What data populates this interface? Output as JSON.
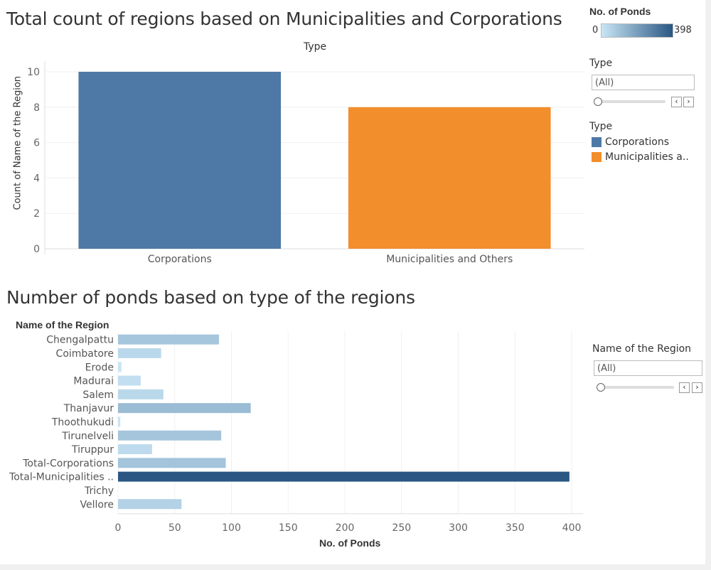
{
  "top_chart_title": "Total count of regions based on Municipalities and Corporations",
  "bottom_chart_title": "Number of ponds based on type of the regions",
  "colors": {
    "corporations": "#4e79a7",
    "municipalities": "#f28e2b",
    "ramp_light": "#c9e6f6",
    "ramp_dark": "#2a5783"
  },
  "right_panel": {
    "ponds_legend": {
      "title": "No. of Ponds",
      "min": "0",
      "max": "398"
    },
    "type_filter": {
      "title": "Type",
      "value": "(All)"
    },
    "type_legend": {
      "title": "Type",
      "items": [
        {
          "label": "Corporations",
          "color": "#4e79a7"
        },
        {
          "label": "Municipalities a..",
          "color": "#f28e2b"
        }
      ]
    },
    "region_filter": {
      "title": "Name of the Region",
      "value": "(All)"
    }
  },
  "chart_data": [
    {
      "type": "bar",
      "title": "Total count of regions based on Municipalities and Corporations",
      "column_header": "Type",
      "ylabel": "Count of Name of the Region",
      "categories": [
        "Corporations",
        "Municipalities and Others"
      ],
      "values": [
        10,
        8
      ],
      "colors": [
        "#4e79a7",
        "#f28e2b"
      ],
      "ylim": [
        0,
        10
      ],
      "yticks": [
        0,
        2,
        4,
        6,
        8,
        10
      ],
      "grid": true
    },
    {
      "type": "bar",
      "orientation": "horizontal",
      "title": "Number of ponds based on type of the regions",
      "row_header": "Name of the Region",
      "xlabel": "No. of Ponds",
      "categories": [
        "Chengalpattu",
        "Coimbatore",
        "Erode",
        "Madurai",
        "Salem",
        "Thanjavur",
        "Thoothukudi",
        "Tirunelveli",
        "Tiruppur",
        "Total-Corporations",
        "Total-Municipalities ..",
        "Trichy",
        "Vellore"
      ],
      "values": [
        89,
        38,
        3,
        20,
        40,
        117,
        2,
        91,
        30,
        95,
        398,
        0,
        56
      ],
      "xlim": [
        0,
        410
      ],
      "xticks": [
        0,
        50,
        100,
        150,
        200,
        250,
        300,
        350,
        400
      ],
      "color_scale": "No. of Ponds",
      "grid": true
    }
  ]
}
